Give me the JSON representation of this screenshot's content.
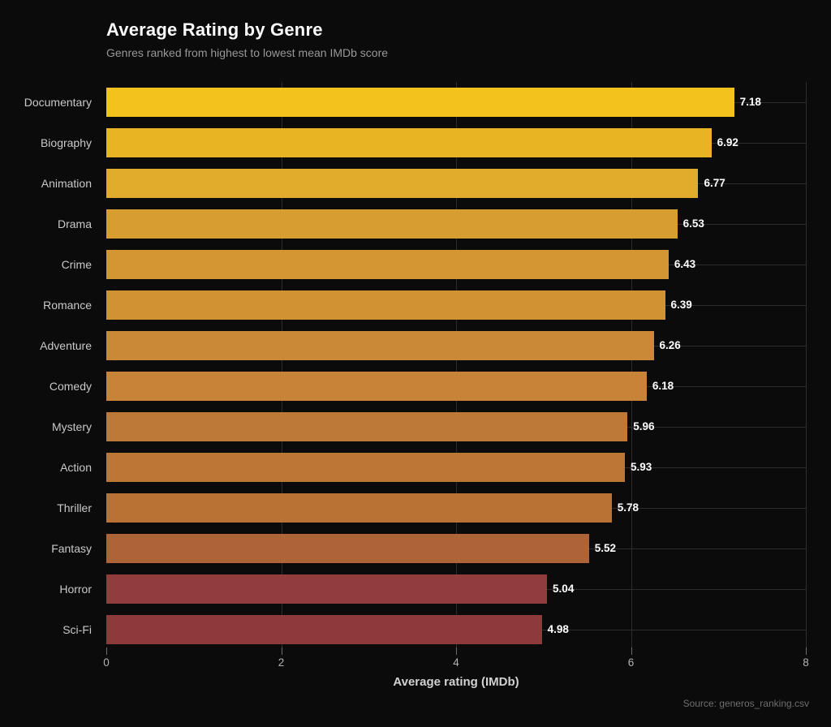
{
  "colors": {
    "background": "#0b0b0c",
    "grid": "#2d2d2d",
    "title_text": "#fafafa",
    "subtitle_text": "#989898",
    "category_text": "#c9c9c9",
    "value_text": "#ffffff",
    "tick_text": "#b3b3b3",
    "axis_label_text": "#d2d2d2",
    "source_text": "#6e6e6e"
  },
  "chart_data": {
    "type": "bar",
    "orientation": "horizontal",
    "title": "Average Rating by Genre",
    "subtitle": "Genres ranked from highest to lowest mean IMDb score",
    "xlabel": "Average rating (IMDb)",
    "source": "Source: generos_ranking.csv",
    "xlim": [
      0,
      8
    ],
    "xticks": [
      0,
      2,
      4,
      6,
      8
    ],
    "grid": true,
    "legend": "none",
    "categories": [
      "Documentary",
      "Biography",
      "Animation",
      "Drama",
      "Crime",
      "Romance",
      "Adventure",
      "Comedy",
      "Mystery",
      "Action",
      "Thriller",
      "Fantasy",
      "Horror",
      "Sci-Fi"
    ],
    "values": [
      7.18,
      6.92,
      6.77,
      6.53,
      6.43,
      6.39,
      6.26,
      6.18,
      5.96,
      5.93,
      5.78,
      5.52,
      5.04,
      4.98
    ],
    "bar_colors": [
      "#F3C21C",
      "#E9B424",
      "#E1AB2B",
      "#D89D31",
      "#D39632",
      "#D19233",
      "#CA8937",
      "#C78439",
      "#BD7937",
      "#BC7736",
      "#B87234",
      "#AC6438",
      "#923D3D",
      "#8E3A3A"
    ]
  }
}
